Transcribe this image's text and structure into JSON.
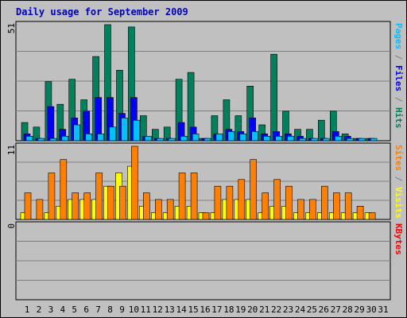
{
  "colors": {
    "background": "#c0c0c0",
    "title": "#0000c0",
    "hits": "#00805c",
    "files": "#0000ff",
    "pages": "#00c0ff",
    "visits": "#ffff00",
    "sites": "#ff8000",
    "kbytes": "#ff0000",
    "weekend": "#00805c",
    "grid": "#808080"
  },
  "chart_data": {
    "type": "bar",
    "title": "Daily usage for September 2009",
    "categories": [
      "1",
      "2",
      "3",
      "4",
      "5",
      "6",
      "7",
      "8",
      "9",
      "10",
      "11",
      "12",
      "13",
      "14",
      "15",
      "16",
      "17",
      "18",
      "19",
      "20",
      "21",
      "22",
      "23",
      "24",
      "25",
      "26",
      "27",
      "28",
      "29",
      "30",
      "31"
    ],
    "weekend_days": [
      "5",
      "6",
      "12",
      "13",
      "19",
      "20",
      "26",
      "27"
    ],
    "panels": [
      {
        "ymax": 51,
        "ymax_label": "51",
        "right_label": [
          {
            "text": "Pages",
            "color_key": "pages"
          },
          {
            "text": " / ",
            "color_key": "grid"
          },
          {
            "text": "Files",
            "color_key": "files"
          },
          {
            "text": " / ",
            "color_key": "grid"
          },
          {
            "text": "Hits",
            "color_key": "hits"
          }
        ],
        "series": [
          {
            "name": "Hits",
            "color_key": "hits",
            "values": [
              8,
              6,
              26,
              16,
              27,
              18,
              37,
              51,
              31,
              50,
              11,
              5,
              6,
              27,
              30,
              1,
              11,
              18,
              11,
              24,
              7,
              38,
              13,
              5,
              5,
              9,
              13,
              3,
              1,
              1,
              0
            ]
          },
          {
            "name": "Files",
            "color_key": "files",
            "values": [
              3,
              1,
              15,
              5,
              10,
              13,
              19,
              19,
              12,
              19,
              2,
              1,
              1,
              8,
              6,
              1,
              3,
              5,
              4,
              10,
              3,
              4,
              3,
              2,
              1,
              1,
              4,
              2,
              1,
              1,
              0
            ]
          },
          {
            "name": "Pages",
            "color_key": "pages",
            "values": [
              2,
              1,
              1,
              2,
              7,
              3,
              3,
              6,
              10,
              9,
              2,
              1,
              1,
              2,
              3,
              1,
              3,
              4,
              3,
              4,
              2,
              2,
              2,
              1,
              1,
              1,
              2,
              1,
              1,
              1,
              0
            ]
          }
        ]
      },
      {
        "ymax": 11,
        "ymax_label": "11",
        "right_label": [
          {
            "text": "Sites",
            "color_key": "sites"
          },
          {
            "text": " / ",
            "color_key": "grid"
          },
          {
            "text": "Visits",
            "color_key": "visits"
          }
        ],
        "series": [
          {
            "name": "Visits",
            "color_key": "visits",
            "values": [
              1,
              0,
              1,
              2,
              3,
              3,
              3,
              5,
              7,
              8,
              2,
              1,
              1,
              2,
              2,
              1,
              1,
              3,
              3,
              3,
              1,
              2,
              2,
              1,
              1,
              1,
              1,
              1,
              1,
              1,
              0
            ]
          },
          {
            "name": "Sites",
            "color_key": "sites",
            "values": [
              4,
              3,
              7,
              9,
              4,
              4,
              7,
              5,
              5,
              11,
              4,
              3,
              3,
              7,
              7,
              1,
              5,
              5,
              6,
              9,
              4,
              6,
              5,
              3,
              3,
              5,
              4,
              4,
              2,
              1,
              0
            ]
          }
        ]
      },
      {
        "ymax": 0,
        "ymax_label": "0",
        "right_label": [
          {
            "text": "KBytes",
            "color_key": "kbytes"
          }
        ],
        "series": [
          {
            "name": "KBytes",
            "color_key": "kbytes",
            "values": [
              0,
              0,
              0,
              0,
              0,
              0,
              0,
              0,
              0,
              0,
              0,
              0,
              0,
              0,
              0,
              0,
              0,
              0,
              0,
              0,
              0,
              0,
              0,
              0,
              0,
              0,
              0,
              0,
              0,
              0,
              0
            ]
          }
        ]
      }
    ]
  }
}
